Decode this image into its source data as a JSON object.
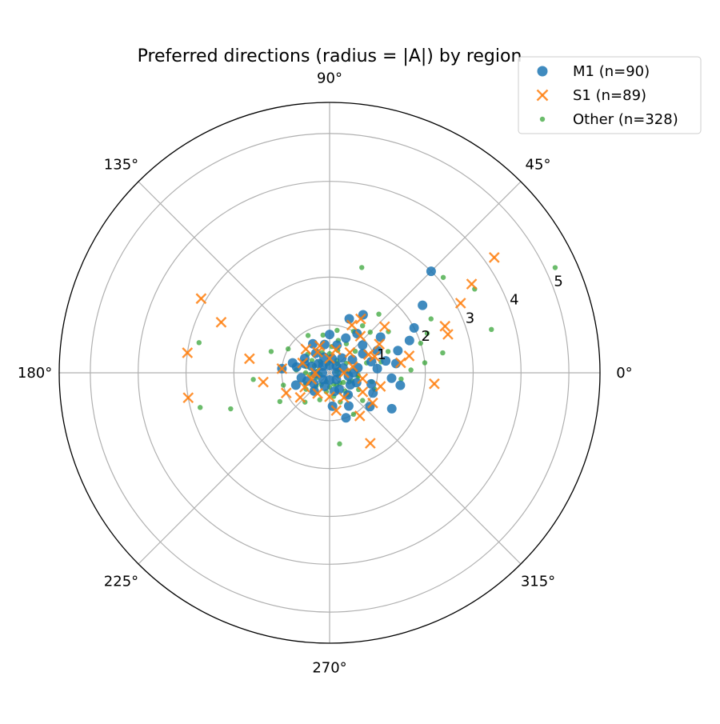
{
  "chart_data": {
    "type": "scatter",
    "projection": "polar",
    "title": "Preferred directions (radius = |A|) by region",
    "angle_unit": "degrees",
    "theta_ticks": [
      0,
      45,
      90,
      135,
      180,
      225,
      270,
      315
    ],
    "theta_tick_labels": [
      "0°",
      "45°",
      "90°",
      "135°",
      "180°",
      "225°",
      "270°",
      "315°"
    ],
    "r_ticks": [
      1,
      2,
      3,
      4,
      5
    ],
    "r_tick_labels": [
      "1",
      "2",
      "3",
      "4",
      "5"
    ],
    "rlim": [
      0,
      5.65
    ],
    "grid": true,
    "legend_position": "top-right",
    "series": [
      {
        "name": "M1 (n=90)",
        "marker": "circle",
        "color": "#1f77b4",
        "count": 90,
        "points": [
          [
            45,
            3.0
          ],
          [
            36,
            2.4
          ],
          [
            28,
            2.0
          ],
          [
            22,
            1.8
          ],
          [
            18,
            1.5
          ],
          [
            12,
            1.2
          ],
          [
            60,
            1.4
          ],
          [
            70,
            1.2
          ],
          [
            55,
            1.0
          ],
          [
            40,
            0.9
          ],
          [
            30,
            0.8
          ],
          [
            15,
            0.9
          ],
          [
            5,
            1.0
          ],
          [
            -5,
            1.3
          ],
          [
            -10,
            1.5
          ],
          [
            -30,
            1.5
          ],
          [
            -40,
            1.1
          ],
          [
            -60,
            0.8
          ],
          [
            -85,
            0.7
          ],
          [
            -70,
            1.0
          ],
          [
            -20,
            0.6
          ],
          [
            0,
            0.5
          ],
          [
            90,
            0.8
          ],
          [
            100,
            0.6
          ],
          [
            120,
            0.7
          ],
          [
            150,
            0.6
          ],
          [
            165,
            0.8
          ],
          [
            175,
            1.0
          ],
          [
            170,
            0.7
          ],
          [
            190,
            0.6
          ],
          [
            200,
            0.5
          ],
          [
            215,
            0.4
          ],
          [
            160,
            0.4
          ],
          [
            140,
            0.3
          ],
          [
            80,
            0.3
          ],
          [
            50,
            0.4
          ],
          [
            20,
            0.3
          ],
          [
            10,
            0.6
          ],
          [
            350,
            0.4
          ],
          [
            330,
            0.5
          ],
          [
            300,
            0.4
          ],
          [
            250,
            0.3
          ],
          [
            230,
            0.5
          ],
          [
            185,
            0.3
          ],
          [
            125,
            0.5
          ],
          [
            110,
            0.35
          ],
          [
            75,
            0.6
          ],
          [
            65,
            0.8
          ],
          [
            35,
            1.3
          ],
          [
            25,
            1.1
          ],
          [
            8,
            1.4
          ],
          [
            -15,
            0.9
          ],
          [
            -25,
            1.0
          ],
          [
            -50,
            0.6
          ],
          [
            2,
            0.15
          ],
          [
            45,
            0.2
          ],
          [
            135,
            0.2
          ],
          [
            225,
            0.2
          ],
          [
            315,
            0.2
          ],
          [
            90,
            0.15
          ],
          [
            180,
            0.15
          ],
          [
            270,
            0.15
          ],
          [
            30,
            0.55
          ],
          [
            160,
            0.55
          ],
          [
            200,
            0.75
          ],
          [
            -75,
            0.4
          ]
        ]
      },
      {
        "name": "S1 (n=89)",
        "marker": "x",
        "color": "#ff7f0e",
        "count": 89,
        "points": [
          [
            35,
            4.2
          ],
          [
            32,
            3.5
          ],
          [
            28,
            3.1
          ],
          [
            22,
            2.6
          ],
          [
            18,
            2.6
          ],
          [
            -6,
            2.2
          ],
          [
            12,
            1.7
          ],
          [
            8,
            1.5
          ],
          [
            60,
            1.3
          ],
          [
            65,
            1.1
          ],
          [
            30,
            1.2
          ],
          [
            20,
            1.0
          ],
          [
            -15,
            1.1
          ],
          [
            -35,
            1.1
          ],
          [
            -55,
            1.1
          ],
          [
            -60,
            1.7
          ],
          [
            -80,
            0.8
          ],
          [
            150,
            3.1
          ],
          [
            172,
            3.0
          ],
          [
            190,
            3.0
          ],
          [
            155,
            2.5
          ],
          [
            170,
            1.7
          ],
          [
            188,
            1.4
          ],
          [
            175,
            1.0
          ],
          [
            205,
            1.0
          ],
          [
            220,
            0.8
          ],
          [
            210,
            0.6
          ],
          [
            110,
            0.6
          ],
          [
            120,
            0.5
          ],
          [
            135,
            0.7
          ],
          [
            160,
            0.6
          ],
          [
            200,
            0.4
          ],
          [
            240,
            0.5
          ],
          [
            270,
            0.5
          ],
          [
            300,
            0.6
          ],
          [
            330,
            0.8
          ],
          [
            75,
            0.5
          ],
          [
            45,
            0.6
          ],
          [
            15,
            0.5
          ],
          [
            0,
            0.3
          ],
          [
            90,
            0.3
          ],
          [
            180,
            0.3
          ],
          [
            50,
            1.0
          ],
          [
            40,
            1.5
          ],
          [
            25,
            0.9
          ],
          [
            -10,
            0.7
          ]
        ]
      },
      {
        "name": "Other (n=328)",
        "marker": "dot",
        "color": "#2ca02c",
        "count": 328,
        "points": [
          [
            25,
            5.2
          ],
          [
            73,
            2.3
          ],
          [
            15,
            3.5
          ],
          [
            30,
            3.5
          ],
          [
            40,
            3.1
          ],
          [
            28,
            2.4
          ],
          [
            22,
            2.2
          ],
          [
            18,
            2.0
          ],
          [
            10,
            2.4
          ],
          [
            6,
            2.0
          ],
          [
            2,
            1.7
          ],
          [
            -5,
            1.5
          ],
          [
            167,
            2.8
          ],
          [
            195,
            2.8
          ],
          [
            200,
            2.2
          ],
          [
            185,
            1.6
          ],
          [
            160,
            1.3
          ],
          [
            150,
            1.0
          ],
          [
            195,
            1.0
          ],
          [
            210,
            1.2
          ],
          [
            -82,
            1.5
          ],
          [
            -60,
            1.0
          ],
          [
            -40,
            0.9
          ],
          [
            -20,
            1.0
          ],
          [
            50,
            1.6
          ],
          [
            55,
            1.2
          ],
          [
            60,
            1.0
          ],
          [
            45,
            1.2
          ],
          [
            35,
            1.5
          ],
          [
            20,
            1.3
          ],
          [
            12,
            1.1
          ],
          [
            -12,
            0.9
          ],
          [
            -30,
            0.7
          ],
          [
            80,
            0.9
          ],
          [
            100,
            0.8
          ],
          [
            120,
            0.9
          ],
          [
            140,
            0.6
          ],
          [
            165,
            0.5
          ],
          [
            175,
            0.7
          ],
          [
            215,
            0.6
          ],
          [
            230,
            0.8
          ],
          [
            250,
            0.6
          ],
          [
            280,
            0.5
          ],
          [
            310,
            0.6
          ],
          [
            340,
            0.5
          ],
          [
            70,
            0.5
          ],
          [
            30,
            0.4
          ],
          [
            5,
            0.4
          ],
          [
            90,
            0.4
          ],
          [
            180,
            0.5
          ],
          [
            270,
            0.3
          ],
          [
            200,
            0.3
          ],
          [
            130,
            0.3
          ],
          [
            40,
            0.7
          ],
          [
            60,
            0.7
          ],
          [
            15,
            0.8
          ],
          [
            -8,
            0.6
          ],
          [
            -50,
            0.5
          ],
          [
            225,
            0.4
          ],
          [
            315,
            0.3
          ],
          [
            100,
            0.2
          ],
          [
            170,
            0.25
          ],
          [
            250,
            0.2
          ],
          [
            20,
            0.2
          ],
          [
            340,
            0.2
          ],
          [
            60,
            0.3
          ],
          [
            145,
            0.45
          ],
          [
            190,
            0.2
          ],
          [
            290,
            0.25
          ],
          [
            10,
            0.15
          ],
          [
            50,
            0.25
          ],
          [
            110,
            0.45
          ],
          [
            205,
            0.55
          ],
          [
            235,
            0.3
          ],
          [
            325,
            0.35
          ],
          [
            -70,
            0.65
          ],
          [
            -25,
            0.45
          ],
          [
            75,
            0.7
          ],
          [
            85,
            0.55
          ],
          [
            155,
            0.35
          ],
          [
            185,
            0.4
          ],
          [
            260,
            0.4
          ],
          [
            300,
            0.3
          ],
          [
            355,
            0.6
          ]
        ]
      }
    ]
  }
}
